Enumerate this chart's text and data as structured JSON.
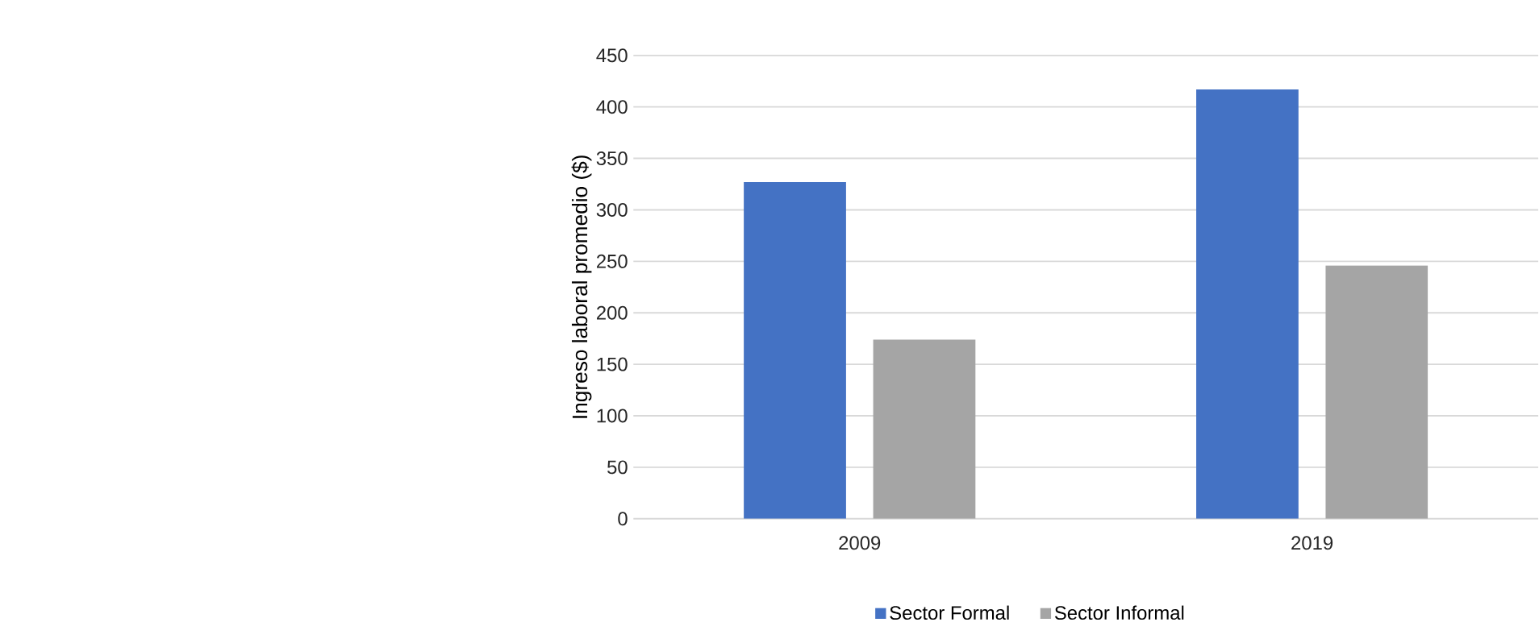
{
  "chart_data": {
    "type": "bar",
    "ylabel": "Ingreso laboral promedio ($)",
    "categories": [
      "2009",
      "2019"
    ],
    "series": [
      {
        "name": "Sector Formal",
        "color": "#4472c4",
        "values": [
          327,
          417
        ]
      },
      {
        "name": "Sector Informal",
        "color": "#a5a5a5",
        "values": [
          174,
          246
        ]
      }
    ],
    "ylim": [
      0,
      450
    ],
    "yticks": [
      0,
      50,
      100,
      150,
      200,
      250,
      300,
      350,
      400,
      450
    ],
    "grid": "y",
    "legend": "bottom"
  }
}
